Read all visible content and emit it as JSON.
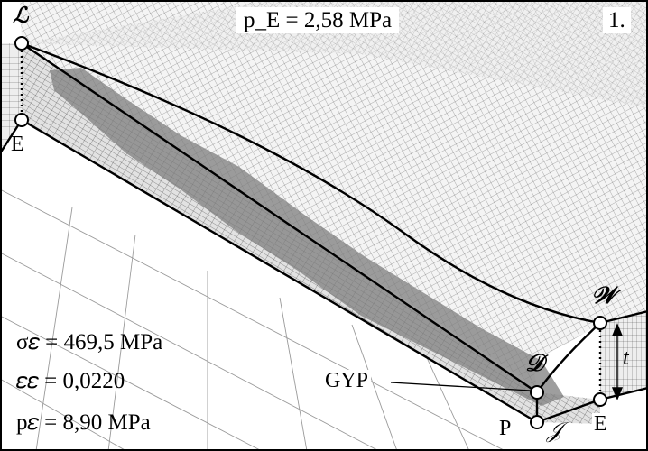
{
  "figure": {
    "panel_number": "1.",
    "pressure_top": "p_E = 2,58 MPa",
    "points": {
      "L": "ℒ",
      "E_left": "E",
      "W": "𝒲",
      "D": "𝒟",
      "J": "𝒥",
      "P": "P",
      "E_right": "E"
    },
    "thickness_label": "t",
    "gyp_label": "GYP",
    "stats": {
      "sigma": "σ𝜀 = 469,5 MPa",
      "eps": "𝜀𝜀 = 0,0220",
      "p": "p𝜀 = 8,90 MPa"
    }
  },
  "colors": {
    "mesh_light": "#f0f0f0",
    "mesh_mid": "#dcdcdc",
    "yield_zone": "#8a8a8a",
    "outline": "#000000"
  }
}
